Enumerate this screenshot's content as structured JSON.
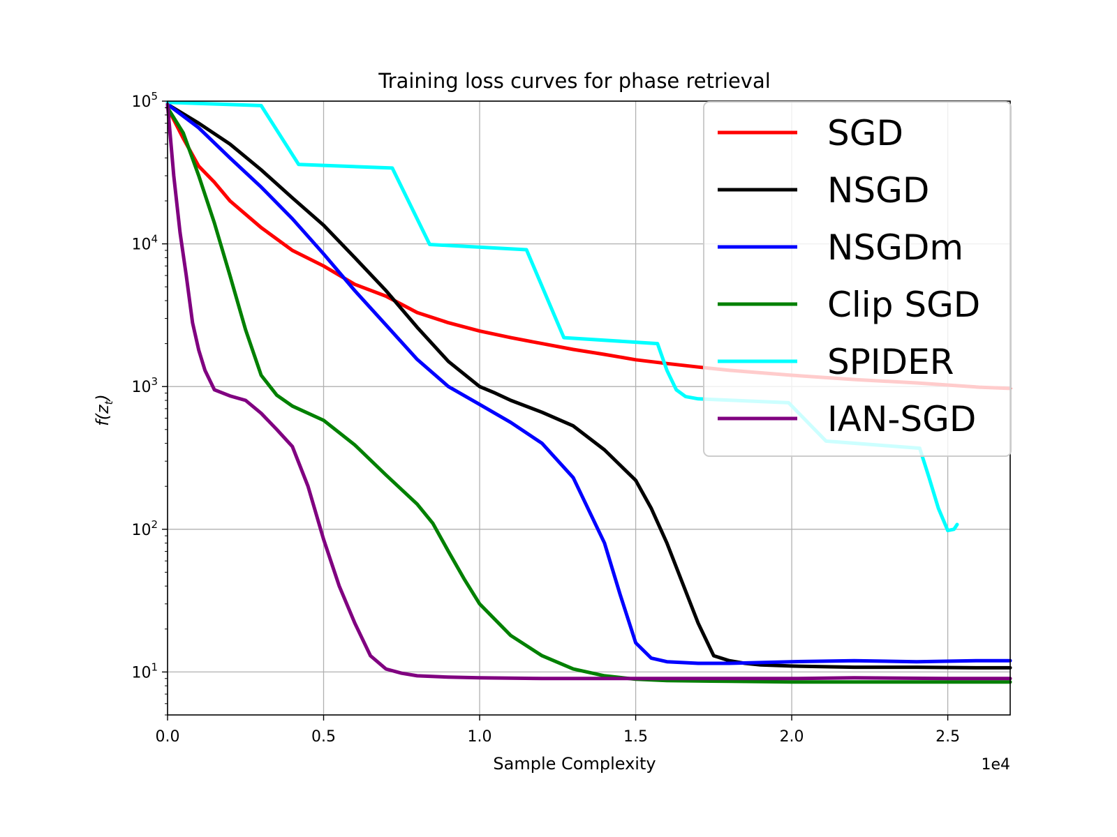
{
  "chart_data": {
    "type": "line",
    "title": "Training loss curves for phase retrieval",
    "xlabel": "Sample Complexity",
    "ylabel": "f(z_t)",
    "ylabel_main": "f(z",
    "ylabel_sub": "t",
    "ylabel_end": ")",
    "x_offset_label": "1e4",
    "xscale_note": "x values in units of 1e4",
    "yscale": "log",
    "xlim": [
      0,
      2.7
    ],
    "ylim": [
      5,
      100000
    ],
    "grid": true,
    "legend_position": "upper right",
    "x_ticks": [
      {
        "value": 0.0,
        "label": "0.0"
      },
      {
        "value": 0.5,
        "label": "0.5"
      },
      {
        "value": 1.0,
        "label": "1.0"
      },
      {
        "value": 1.5,
        "label": "1.5"
      },
      {
        "value": 2.0,
        "label": "2.0"
      },
      {
        "value": 2.5,
        "label": "2.5"
      }
    ],
    "y_ticks": [
      {
        "value": 10,
        "base": "10",
        "exp": "1"
      },
      {
        "value": 100,
        "base": "10",
        "exp": "2"
      },
      {
        "value": 1000,
        "base": "10",
        "exp": "3"
      },
      {
        "value": 10000,
        "base": "10",
        "exp": "4"
      },
      {
        "value": 100000,
        "base": "10",
        "exp": "5"
      }
    ],
    "series": [
      {
        "name": "SGD",
        "color": "#ff0000",
        "x": [
          0,
          0.05,
          0.1,
          0.15,
          0.2,
          0.3,
          0.4,
          0.5,
          0.6,
          0.7,
          0.8,
          0.9,
          1.0,
          1.1,
          1.2,
          1.3,
          1.4,
          1.5,
          1.6,
          1.7,
          1.8,
          2.0,
          2.2,
          2.4,
          2.6,
          2.7
        ],
        "y": [
          90000,
          55000,
          35000,
          27000,
          20000,
          13000,
          9000,
          7000,
          5200,
          4300,
          3300,
          2800,
          2450,
          2200,
          2000,
          1820,
          1680,
          1540,
          1450,
          1370,
          1300,
          1200,
          1120,
          1060,
          990,
          970
        ]
      },
      {
        "name": "NSGD",
        "color": "#000000",
        "x": [
          0,
          0.1,
          0.2,
          0.3,
          0.4,
          0.5,
          0.6,
          0.7,
          0.8,
          0.9,
          1.0,
          1.05,
          1.1,
          1.2,
          1.3,
          1.4,
          1.5,
          1.55,
          1.6,
          1.65,
          1.7,
          1.75,
          1.8,
          1.85,
          1.9,
          2.0,
          2.2,
          2.4,
          2.6,
          2.7
        ],
        "y": [
          95000,
          70000,
          50000,
          33000,
          21000,
          13500,
          8000,
          4700,
          2600,
          1500,
          1000,
          900,
          800,
          660,
          530,
          360,
          220,
          140,
          80,
          42,
          22,
          13,
          12,
          11.5,
          11.2,
          11,
          10.8,
          10.8,
          10.7,
          10.7
        ]
      },
      {
        "name": "NSGDm",
        "color": "#0000ff",
        "x": [
          0,
          0.1,
          0.2,
          0.3,
          0.4,
          0.5,
          0.6,
          0.7,
          0.8,
          0.9,
          1.0,
          1.1,
          1.2,
          1.3,
          1.4,
          1.45,
          1.5,
          1.55,
          1.6,
          1.7,
          1.8,
          2.0,
          2.2,
          2.4,
          2.6,
          2.7
        ],
        "y": [
          95000,
          65000,
          40000,
          25000,
          15000,
          8500,
          4700,
          2700,
          1550,
          1000,
          750,
          560,
          400,
          230,
          80,
          35,
          16,
          12.5,
          11.8,
          11.5,
          11.5,
          11.8,
          12,
          11.8,
          12,
          12
        ]
      },
      {
        "name": "Clip SGD",
        "color": "#008000",
        "x": [
          0,
          0.05,
          0.1,
          0.15,
          0.2,
          0.25,
          0.3,
          0.35,
          0.4,
          0.5,
          0.6,
          0.7,
          0.8,
          0.85,
          0.9,
          0.95,
          1.0,
          1.1,
          1.2,
          1.3,
          1.4,
          1.5,
          1.6,
          1.8,
          2.0,
          2.2,
          2.4,
          2.7
        ],
        "y": [
          90000,
          60000,
          30000,
          14000,
          6000,
          2500,
          1200,
          870,
          730,
          580,
          390,
          240,
          150,
          110,
          70,
          45,
          30,
          18,
          13,
          10.5,
          9.4,
          8.9,
          8.7,
          8.6,
          8.5,
          8.5,
          8.5,
          8.5
        ]
      },
      {
        "name": "SPIDER",
        "color": "#00ffff",
        "x": [
          0,
          0.3,
          0.42,
          0.72,
          0.84,
          1.15,
          1.27,
          1.57,
          1.6,
          1.63,
          1.66,
          1.7,
          1.99,
          2.11,
          2.41,
          2.44,
          2.47,
          2.5,
          2.52,
          2.53
        ],
        "y": [
          98000,
          93000,
          36000,
          34000,
          9900,
          9100,
          2200,
          2000,
          1300,
          950,
          850,
          820,
          770,
          415,
          370,
          230,
          140,
          98,
          100,
          108
        ]
      },
      {
        "name": "IAN-SGD",
        "color": "#800080",
        "x": [
          0,
          0.02,
          0.04,
          0.06,
          0.08,
          0.1,
          0.12,
          0.15,
          0.2,
          0.25,
          0.3,
          0.35,
          0.4,
          0.45,
          0.5,
          0.55,
          0.6,
          0.65,
          0.7,
          0.75,
          0.8,
          0.9,
          1.0,
          1.2,
          1.5,
          1.8,
          2.0,
          2.2,
          2.5,
          2.7
        ],
        "y": [
          95000,
          30000,
          12000,
          6000,
          2800,
          1800,
          1300,
          950,
          860,
          800,
          650,
          500,
          380,
          200,
          85,
          40,
          22,
          13,
          10.5,
          9.8,
          9.4,
          9.2,
          9.1,
          9.0,
          9.0,
          9.0,
          9.0,
          9.1,
          9.0,
          9.0
        ]
      }
    ]
  }
}
